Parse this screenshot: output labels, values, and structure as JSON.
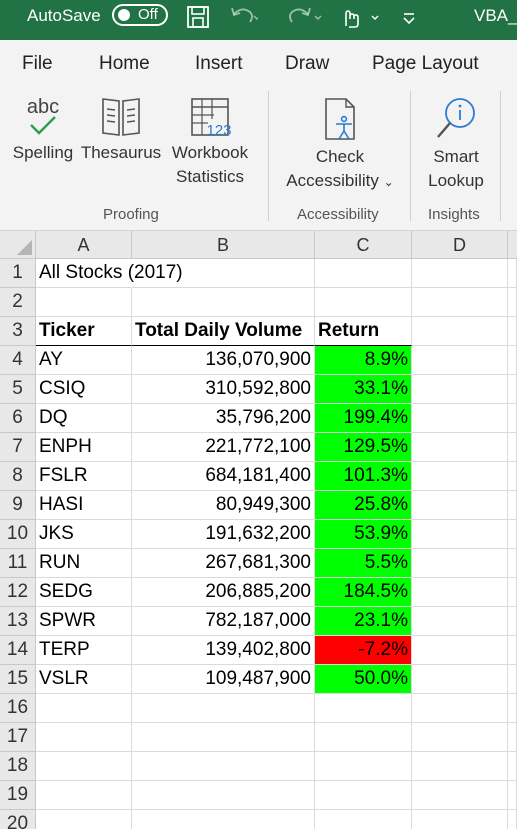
{
  "titlebar": {
    "autosave_label": "AutoSave",
    "autosave_state": "Off",
    "file_name": "VBA_C"
  },
  "tabs": [
    "File",
    "Home",
    "Insert",
    "Draw",
    "Page Layout"
  ],
  "ribbon": {
    "proofing": {
      "group_label": "Proofing",
      "spelling": "Spelling",
      "thesaurus": "Thesaurus",
      "workbook_line1": "Workbook",
      "workbook_line2": "Statistics",
      "abc_text": "abc",
      "stats_number": "123"
    },
    "accessibility": {
      "group_label": "Accessibility",
      "check_line1": "Check",
      "check_line2": "Accessibility"
    },
    "insights": {
      "group_label": "Insights",
      "smart_line1": "Smart",
      "smart_line2": "Lookup"
    }
  },
  "columns": [
    "A",
    "B",
    "C",
    "D"
  ],
  "rows": [
    "1",
    "2",
    "3",
    "4",
    "5",
    "6",
    "7",
    "8",
    "9",
    "10",
    "11",
    "12",
    "13",
    "14",
    "15",
    "16",
    "17",
    "18",
    "19",
    "20"
  ],
  "sheet": {
    "title": "All Stocks (2017)",
    "headers": {
      "ticker": "Ticker",
      "volume": "Total Daily Volume",
      "return": "Return"
    },
    "data": [
      {
        "ticker": "AY",
        "volume": "136,070,900",
        "return": "8.9%",
        "positive": true
      },
      {
        "ticker": "CSIQ",
        "volume": "310,592,800",
        "return": "33.1%",
        "positive": true
      },
      {
        "ticker": "DQ",
        "volume": "35,796,200",
        "return": "199.4%",
        "positive": true
      },
      {
        "ticker": "ENPH",
        "volume": "221,772,100",
        "return": "129.5%",
        "positive": true
      },
      {
        "ticker": "FSLR",
        "volume": "684,181,400",
        "return": "101.3%",
        "positive": true
      },
      {
        "ticker": "HASI",
        "volume": "80,949,300",
        "return": "25.8%",
        "positive": true
      },
      {
        "ticker": "JKS",
        "volume": "191,632,200",
        "return": "53.9%",
        "positive": true
      },
      {
        "ticker": "RUN",
        "volume": "267,681,300",
        "return": "5.5%",
        "positive": true
      },
      {
        "ticker": "SEDG",
        "volume": "206,885,200",
        "return": "184.5%",
        "positive": true
      },
      {
        "ticker": "SPWR",
        "volume": "782,187,000",
        "return": "23.1%",
        "positive": true
      },
      {
        "ticker": "TERP",
        "volume": "139,402,800",
        "return": "-7.2%",
        "positive": false
      },
      {
        "ticker": "VSLR",
        "volume": "109,487,900",
        "return": "50.0%",
        "positive": true
      }
    ]
  },
  "colors": {
    "excel_green": "#217346",
    "positive_fill": "#00ff00",
    "negative_fill": "#ff0000"
  }
}
